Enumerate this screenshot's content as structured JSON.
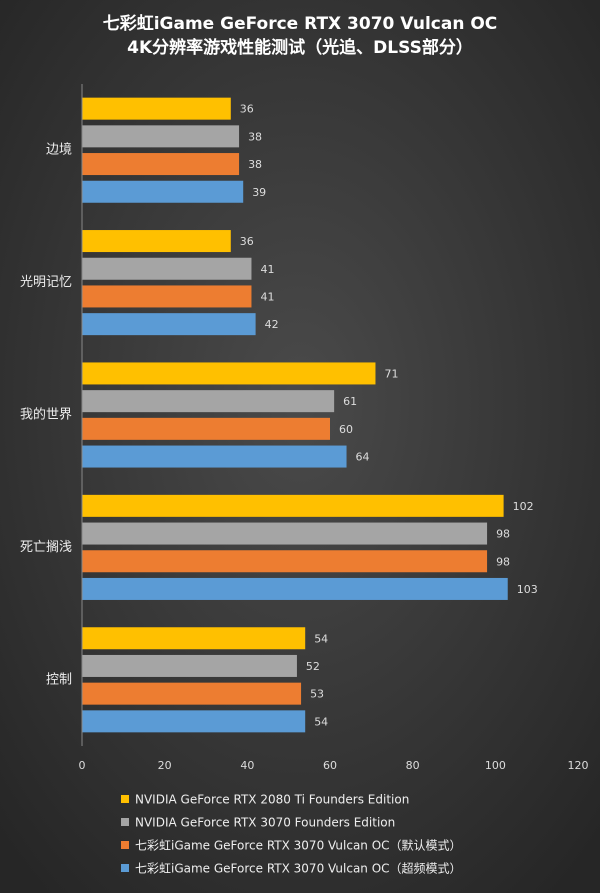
{
  "chart_data": {
    "type": "barh",
    "title": [
      "七彩虹iGame GeForce RTX 3070 Vulcan OC",
      "4K分辨率游戏性能测试（光追、DLSS部分）"
    ],
    "categories": [
      "边境",
      "光明记忆",
      "我的世界",
      "死亡搁浅",
      "控制"
    ],
    "series": [
      {
        "name": "NVIDIA GeForce RTX 2080 Ti Founders Edition",
        "color": "#ffc000",
        "values": [
          36,
          36,
          71,
          102,
          54
        ]
      },
      {
        "name": "NVIDIA GeForce RTX 3070 Founders Edition",
        "color": "#a5a5a5",
        "values": [
          38,
          41,
          61,
          98,
          52
        ]
      },
      {
        "name": "七彩虹iGame GeForce RTX 3070 Vulcan OC（默认模式）",
        "color": "#ed7d31",
        "values": [
          38,
          41,
          60,
          98,
          53
        ]
      },
      {
        "name": "七彩虹iGame GeForce RTX 3070 Vulcan OC（超频模式）",
        "color": "#5b9bd5",
        "values": [
          39,
          42,
          64,
          103,
          54
        ]
      }
    ],
    "xlim": [
      0,
      120
    ],
    "xticks": [
      0,
      20,
      40,
      60,
      80,
      100,
      120
    ],
    "grid": false,
    "legend": "bottom"
  }
}
